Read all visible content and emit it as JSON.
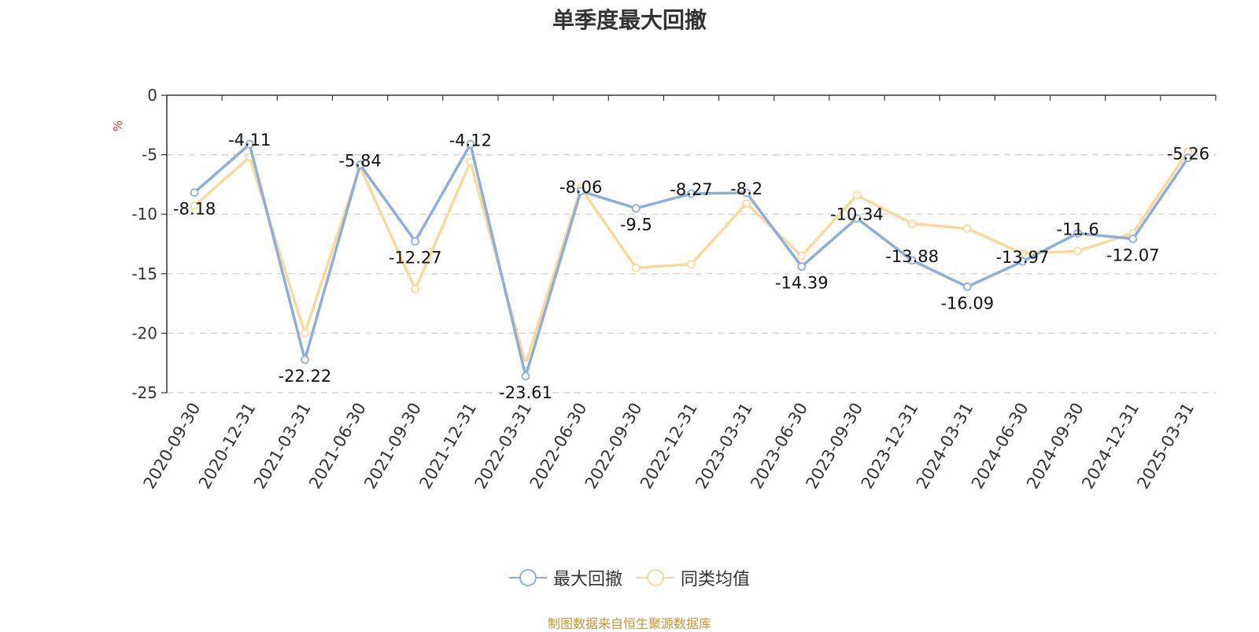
{
  "chart_data": {
    "type": "line",
    "title": "单季度最大回撤",
    "ylabel": "%",
    "ylim": [
      -25,
      0
    ],
    "yticks": [
      0,
      -5,
      -10,
      -15,
      -20,
      -25
    ],
    "grid": true,
    "legend_position": "bottom-center",
    "categories": [
      "2020-09-30",
      "2020-12-31",
      "2021-03-31",
      "2021-06-30",
      "2021-09-30",
      "2021-12-31",
      "2022-03-31",
      "2022-06-30",
      "2022-09-30",
      "2022-12-31",
      "2023-03-31",
      "2023-06-30",
      "2023-09-30",
      "2023-12-31",
      "2024-03-31",
      "2024-06-30",
      "2024-09-30",
      "2024-12-31",
      "2025-03-31"
    ],
    "series": [
      {
        "name": "最大回撤",
        "color": "#8eadd9",
        "values": [
          -8.18,
          -4.11,
          -22.22,
          -5.84,
          -12.27,
          -4.12,
          -23.61,
          -8.06,
          -9.5,
          -8.27,
          -8.2,
          -14.39,
          -10.34,
          -13.88,
          -16.09,
          -13.97,
          -11.6,
          -12.07,
          -5.26
        ],
        "labels": [
          "-8.18",
          "-4.11",
          "-22.22",
          "-5.84",
          "-12.27",
          "-4.12",
          "-23.61",
          "-8.06",
          "-9.5",
          "-8.27",
          "-8.2",
          "-14.39",
          "-10.34",
          "-13.88",
          "-16.09",
          "-13.97",
          "-11.6",
          "-12.07",
          "-5.26"
        ]
      },
      {
        "name": "同类均值",
        "color": "#f9d99a",
        "values": [
          -9.3,
          -5.2,
          -20.0,
          -6.0,
          -16.3,
          -5.6,
          -22.6,
          -7.8,
          -14.5,
          -14.2,
          -9.1,
          -13.5,
          -8.4,
          -10.8,
          -11.2,
          -13.3,
          -13.1,
          -11.6,
          -4.7
        ]
      }
    ],
    "source_note": "制图数据来自恒生聚源数据库"
  }
}
